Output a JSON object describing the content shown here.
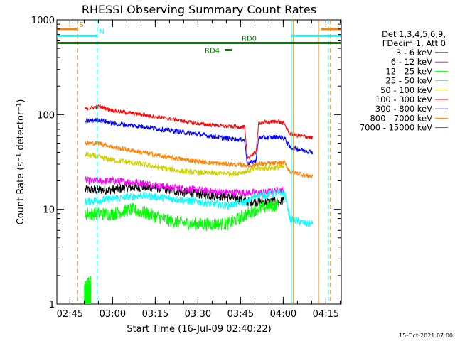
{
  "chart_data": {
    "type": "line",
    "title": "RHESSI Observing Summary Count Rates",
    "xlabel": "Start Time (16-Jul-09 02:40:22)",
    "ylabel": "Count Rate (s⁻¹ detector⁻¹)",
    "yscale": "log",
    "ylim": [
      1,
      1000
    ],
    "xlim_minutes": [
      0,
      100
    ],
    "x_ticks": [
      {
        "t": 4.6,
        "label": "02:45"
      },
      {
        "t": 19.6,
        "label": "03:00"
      },
      {
        "t": 34.6,
        "label": "03:15"
      },
      {
        "t": 49.6,
        "label": "03:30"
      },
      {
        "t": 64.6,
        "label": "03:45"
      },
      {
        "t": 79.6,
        "label": "04:00"
      },
      {
        "t": 94.6,
        "label": "04:15"
      }
    ],
    "y_ticks": [
      {
        "v": 1,
        "label": "1"
      },
      {
        "v": 10,
        "label": "10"
      },
      {
        "v": 100,
        "label": "100"
      },
      {
        "v": 1000,
        "label": "1000"
      }
    ],
    "legend_title": [
      "Det 1,3,4,5,6,9,",
      "FDecim 1, Att 0"
    ],
    "series": [
      {
        "name": "3 - 6 keV",
        "color": "#000000",
        "noise": 0.05,
        "points": [
          [
            10,
            16
          ],
          [
            18,
            16
          ],
          [
            25,
            17
          ],
          [
            35,
            17
          ],
          [
            45,
            15
          ],
          [
            55,
            14
          ],
          [
            63,
            13
          ],
          [
            67,
            12
          ],
          [
            73,
            12
          ],
          [
            79,
            12
          ],
          [
            80,
            13
          ]
        ]
      },
      {
        "name": "6 - 12 keV",
        "color": "#ff00ff",
        "noise": 0.04,
        "points": [
          [
            10,
            20
          ],
          [
            20,
            20
          ],
          [
            30,
            19
          ],
          [
            40,
            17
          ],
          [
            50,
            16
          ],
          [
            60,
            15
          ],
          [
            70,
            15
          ],
          [
            74,
            15
          ],
          [
            78,
            16
          ],
          [
            80,
            16
          ]
        ]
      },
      {
        "name": "12 - 25 keV",
        "color": "#00ff00",
        "noise": 0.07,
        "points": [
          [
            10,
            9
          ],
          [
            15,
            9
          ],
          [
            20,
            9
          ],
          [
            26,
            10
          ],
          [
            32,
            9
          ],
          [
            40,
            7.5
          ],
          [
            48,
            7
          ],
          [
            55,
            7
          ],
          [
            60,
            7
          ],
          [
            64,
            8
          ],
          [
            67,
            9
          ],
          [
            70,
            10
          ],
          [
            76,
            11
          ],
          [
            78,
            11
          ]
        ]
      },
      {
        "name": "25 - 50 keV",
        "color": "#00ffff",
        "noise": 0.04,
        "points": [
          [
            10,
            12
          ],
          [
            20,
            13
          ],
          [
            30,
            14
          ],
          [
            40,
            13
          ],
          [
            50,
            12
          ],
          [
            60,
            11
          ],
          [
            67,
            12
          ],
          [
            70,
            14
          ],
          [
            80,
            15
          ],
          [
            82,
            8
          ],
          [
            88,
            7
          ],
          [
            90,
            7
          ]
        ]
      },
      {
        "name": "50 - 100 keV",
        "color": "#d0d000",
        "noise": 0.03,
        "points": [
          [
            10,
            38
          ],
          [
            20,
            33
          ],
          [
            30,
            30
          ],
          [
            38,
            27
          ],
          [
            45,
            25
          ],
          [
            55,
            24
          ],
          [
            63,
            24
          ],
          [
            66,
            25
          ],
          [
            70,
            27
          ],
          [
            80,
            28
          ]
        ]
      },
      {
        "name": "100 - 300 keV",
        "color": "#ff0000",
        "noise": 0.02,
        "points": [
          [
            10,
            115
          ],
          [
            15,
            122
          ],
          [
            20,
            110
          ],
          [
            30,
            100
          ],
          [
            40,
            90
          ],
          [
            50,
            80
          ],
          [
            60,
            75
          ],
          [
            66,
            74
          ],
          [
            67,
            35
          ],
          [
            70,
            40
          ],
          [
            71,
            82
          ],
          [
            78,
            85
          ],
          [
            80,
            80
          ],
          [
            82,
            62
          ],
          [
            90,
            57
          ]
        ]
      },
      {
        "name": "300 - 800 keV",
        "color": "#0000ff",
        "noise": 0.025,
        "points": [
          [
            10,
            85
          ],
          [
            15,
            88
          ],
          [
            20,
            80
          ],
          [
            30,
            75
          ],
          [
            40,
            68
          ],
          [
            50,
            62
          ],
          [
            60,
            56
          ],
          [
            66,
            54
          ],
          [
            67,
            30
          ],
          [
            70,
            33
          ],
          [
            71,
            57
          ],
          [
            78,
            58
          ],
          [
            80,
            57
          ],
          [
            82,
            45
          ],
          [
            90,
            40
          ]
        ]
      },
      {
        "name": "800 - 7000 keV",
        "color": "#ff8000",
        "noise": 0.025,
        "points": [
          [
            10,
            50
          ],
          [
            15,
            50
          ],
          [
            20,
            45
          ],
          [
            30,
            40
          ],
          [
            40,
            35
          ],
          [
            50,
            32
          ],
          [
            60,
            30
          ],
          [
            68,
            29
          ],
          [
            70,
            30
          ],
          [
            80,
            31
          ],
          [
            82,
            25
          ],
          [
            90,
            22
          ]
        ]
      },
      {
        "name": "7000 - 15000 keV",
        "color": "#a05000",
        "noise": 0,
        "points": []
      }
    ],
    "green_spike": {
      "x_start": 9.7,
      "x_end": 12.0,
      "y_low": 1.5,
      "y_high": 2.0,
      "color": "#00ff00"
    },
    "vlines": [
      {
        "t": 7.3,
        "color": "#ff8000",
        "style": "dashed"
      },
      {
        "t": 14.2,
        "color": "#00ffff",
        "style": "dashed"
      },
      {
        "t": 82.5,
        "color": "#00ffff",
        "style": "solid"
      },
      {
        "t": 83.2,
        "color": "#ff8000",
        "style": "solid"
      },
      {
        "t": 92.0,
        "color": "#ff8000",
        "style": "solid"
      },
      {
        "t": 95.5,
        "color": "#00ffff",
        "style": "dashed"
      },
      {
        "t": 96.2,
        "color": "#ff8000",
        "style": "dashed"
      }
    ],
    "hbars": [
      {
        "label": "S",
        "color": "#ff8000",
        "y": 800,
        "segments": [
          [
            0,
            7.3
          ],
          [
            93,
            100
          ]
        ],
        "label_t": 7.8
      },
      {
        "label": "N",
        "color": "#00ffff",
        "y": 680,
        "segments": [
          [
            0,
            14.2
          ],
          [
            82.5,
            100
          ]
        ],
        "label_t": 14.8
      },
      {
        "label": "RD0",
        "color": "#008000",
        "y": 570,
        "segments": [
          [
            0,
            100
          ]
        ],
        "label_t": 65
      },
      {
        "label": "RD4",
        "color": "#008000",
        "y": 480,
        "segments": [
          [
            59,
            61.5
          ]
        ],
        "label_t": 52
      }
    ],
    "timestamp": "15-Oct-2021 07:00"
  }
}
